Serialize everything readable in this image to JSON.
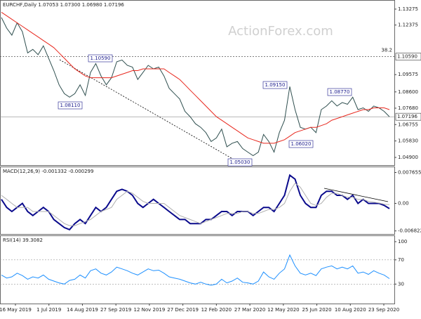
{
  "chart_data": [
    {
      "type": "line",
      "title": "EURCHF,Daily  1.07053 1.07300 1.06980 1.07196",
      "watermark": "ActionForex.com",
      "ylim": [
        1.04465,
        1.13749
      ],
      "yticks": [
        1.13275,
        1.12375,
        {
          "value": 1.09575,
          "label": "1.09575"
        },
        {
          "value": 1.086,
          "label": "1.08600"
        },
        {
          "value": 1.0768,
          "label": "1.07680"
        },
        1.06755,
        {
          "value": 1.0583,
          "label": "1.05830"
        },
        {
          "value": 1.049,
          "label": "1.04900"
        }
      ],
      "hlines": [
        {
          "value": 1.1059,
          "label": "1.10590",
          "note": "38.2"
        },
        {
          "value": 1.07196,
          "label": "1.07196"
        }
      ],
      "annotations": [
        "1.10590",
        "1.08110",
        "1.09150",
        "1.08770",
        "1.06020",
        "1.05030"
      ],
      "x_labels": [
        "16 May 2019",
        "1 Jul 2019",
        "14 Aug 2019",
        "27 Sep 2019",
        "12 Nov 2019",
        "27 Dec 2019",
        "12 Feb 2020",
        "27 Mar 2020",
        "12 May 2020",
        "25 Jun 2020",
        "10 Aug 2020",
        "23 Sep 2020"
      ],
      "series": [
        {
          "name": "Close",
          "color": "#2f4f4f",
          "values": [
            1.128,
            1.122,
            1.118,
            1.125,
            1.12,
            1.108,
            1.11,
            1.107,
            1.112,
            1.105,
            1.098,
            1.09,
            1.085,
            1.083,
            1.085,
            1.09,
            1.084,
            1.097,
            1.102,
            1.095,
            1.09,
            1.094,
            1.103,
            1.104,
            1.101,
            1.1,
            1.093,
            1.097,
            1.101,
            1.099,
            1.1,
            1.095,
            1.088,
            1.085,
            1.082,
            1.075,
            1.072,
            1.068,
            1.066,
            1.063,
            1.058,
            1.06,
            1.065,
            1.055,
            1.057,
            1.058,
            1.054,
            1.052,
            1.05,
            1.052,
            1.062,
            1.058,
            1.052,
            1.063,
            1.07,
            1.089,
            1.076,
            1.066,
            1.065,
            1.066,
            1.063,
            1.076,
            1.078,
            1.081,
            1.078,
            1.08,
            1.079,
            1.083,
            1.076,
            1.077,
            1.075,
            1.078,
            1.077,
            1.075,
            1.072
          ]
        },
        {
          "name": "MA",
          "color": "#e8281e",
          "values": [
            1.131,
            1.129,
            1.127,
            1.125,
            1.123,
            1.121,
            1.119,
            1.117,
            1.115,
            1.113,
            1.111,
            1.108,
            1.105,
            1.102,
            1.099,
            1.097,
            1.095,
            1.094,
            1.094,
            1.094,
            1.094,
            1.094,
            1.095,
            1.096,
            1.097,
            1.098,
            1.098,
            1.099,
            1.099,
            1.099,
            1.099,
            1.099,
            1.097,
            1.095,
            1.093,
            1.09,
            1.087,
            1.084,
            1.081,
            1.078,
            1.075,
            1.072,
            1.07,
            1.068,
            1.066,
            1.064,
            1.062,
            1.06,
            1.059,
            1.058,
            1.057,
            1.057,
            1.057,
            1.058,
            1.059,
            1.061,
            1.063,
            1.064,
            1.065,
            1.066,
            1.066,
            1.067,
            1.068,
            1.07,
            1.071,
            1.072,
            1.073,
            1.074,
            1.075,
            1.076,
            1.076,
            1.077,
            1.077,
            1.077,
            1.076
          ]
        }
      ]
    },
    {
      "type": "line",
      "title": "MACD(12,26,9) -0.001332 -0.000299",
      "ylim": [
        -0.00758,
        0.00896
      ],
      "yticks": [
        0.007655,
        {
          "value": 0,
          "label": "0.00"
        },
        -0.006822
      ],
      "series": [
        {
          "name": "MACD",
          "color": "#0a0a8c",
          "values": [
            0.001,
            -0.001,
            -0.002,
            -0.001,
            0.0,
            -0.002,
            -0.003,
            -0.002,
            -0.001,
            -0.002,
            -0.004,
            -0.005,
            -0.006,
            -0.0065,
            -0.005,
            -0.004,
            -0.005,
            -0.003,
            -0.001,
            -0.002,
            -0.001,
            0.001,
            0.003,
            0.0035,
            0.003,
            0.002,
            0.0,
            -0.001,
            0.0,
            0.001,
            0.0,
            -0.001,
            -0.002,
            -0.003,
            -0.004,
            -0.004,
            -0.005,
            -0.005,
            -0.005,
            -0.004,
            -0.004,
            -0.003,
            -0.002,
            -0.002,
            -0.003,
            -0.002,
            -0.002,
            -0.002,
            -0.003,
            -0.002,
            -0.001,
            -0.001,
            -0.002,
            0.0,
            0.002,
            0.007,
            0.006,
            0.002,
            0.0,
            -0.001,
            -0.001,
            0.002,
            0.003,
            0.003,
            0.002,
            0.002,
            0.001,
            0.002,
            0.0,
            0.001,
            0.0,
            0.0,
            0.0,
            -0.0005,
            -0.0013
          ]
        },
        {
          "name": "Signal",
          "color": "#b0b0b0",
          "values": [
            0.002,
            0.001,
            0.0,
            -0.001,
            -0.001,
            -0.001,
            -0.002,
            -0.002,
            -0.002,
            -0.002,
            -0.003,
            -0.004,
            -0.005,
            -0.0055,
            -0.0055,
            -0.005,
            -0.0045,
            -0.004,
            -0.003,
            -0.002,
            -0.0015,
            -0.001,
            0.001,
            0.002,
            0.003,
            0.0025,
            0.0015,
            0.0005,
            0.0,
            0.0,
            0.0,
            0.0,
            -0.001,
            -0.002,
            -0.003,
            -0.0035,
            -0.004,
            -0.0045,
            -0.005,
            -0.0045,
            -0.004,
            -0.0035,
            -0.003,
            -0.0025,
            -0.0025,
            -0.0025,
            -0.002,
            -0.002,
            -0.0025,
            -0.0025,
            -0.002,
            -0.0015,
            -0.0015,
            -0.001,
            0.0,
            0.003,
            0.005,
            0.004,
            0.002,
            0.0,
            -0.0005,
            0.0,
            0.0015,
            0.0025,
            0.0025,
            0.002,
            0.0015,
            0.0015,
            0.001,
            0.001,
            0.0005,
            0.0003,
            0.0001,
            -0.0002,
            -0.0003
          ]
        }
      ]
    },
    {
      "type": "line",
      "title": "RSI(14) 39.3082",
      "ylim": [
        -2.1,
        109.2
      ],
      "yticks": [
        100,
        70,
        30
      ],
      "series": [
        {
          "name": "RSI",
          "color": "#1e90ff",
          "values": [
            45,
            40,
            42,
            48,
            44,
            38,
            42,
            40,
            45,
            38,
            35,
            32,
            30,
            36,
            38,
            45,
            40,
            52,
            55,
            48,
            45,
            50,
            58,
            55,
            52,
            48,
            45,
            50,
            55,
            52,
            53,
            48,
            42,
            40,
            38,
            35,
            32,
            30,
            33,
            30,
            28,
            30,
            38,
            32,
            35,
            40,
            33,
            32,
            30,
            35,
            50,
            42,
            38,
            48,
            55,
            78,
            60,
            48,
            45,
            48,
            44,
            55,
            58,
            60,
            55,
            58,
            55,
            60,
            48,
            50,
            46,
            52,
            48,
            45,
            39
          ]
        }
      ]
    }
  ]
}
